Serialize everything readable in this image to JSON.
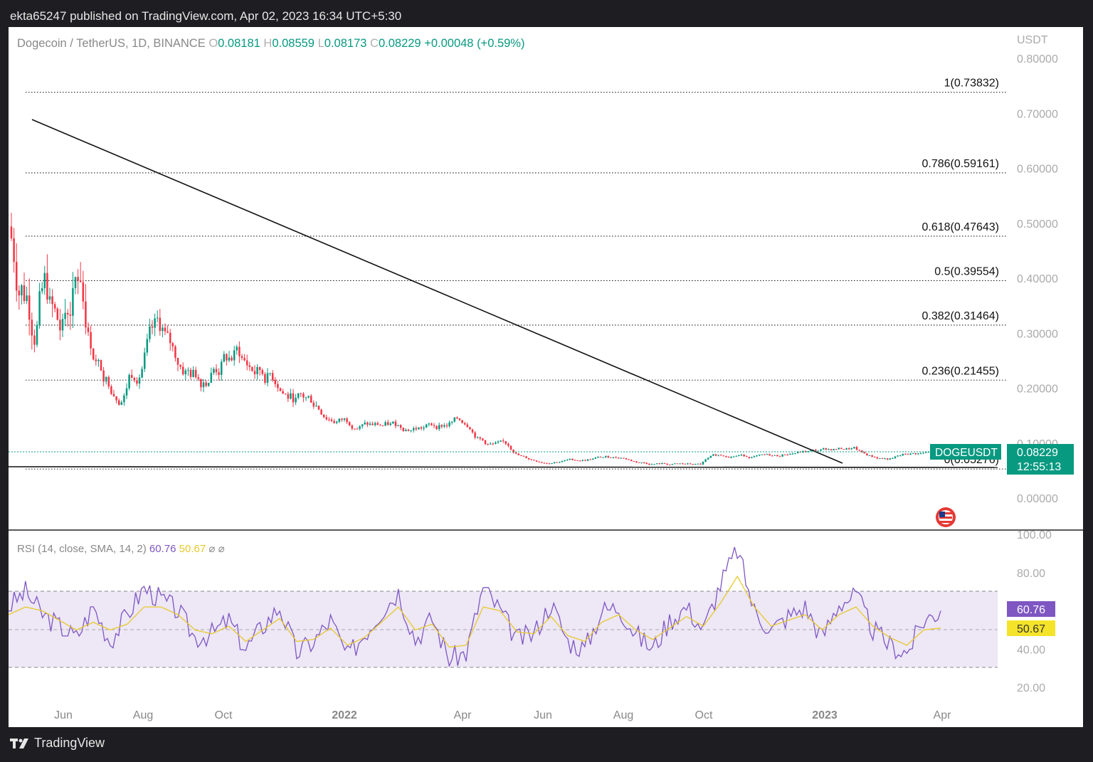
{
  "header": {
    "published_by": "ekta65247 published on TradingView.com, Apr 02, 2023 16:34 UTC+5:30"
  },
  "legend": {
    "symbol": "Dogecoin / TetherUS, 1D, BINANCE",
    "o_label": "O",
    "o_value": "0.08181",
    "h_label": "H",
    "h_value": "0.08559",
    "l_label": "L",
    "l_value": "0.08173",
    "c_label": "C",
    "c_value": "0.08229",
    "change": "+0.00048 (+0.59%)"
  },
  "rsi_legend": {
    "label": "RSI (14, close, SMA, 14, 2)",
    "rsi_value": "60.76",
    "sma_value": "50.67",
    "extra1": "⌀",
    "extra2": "⌀"
  },
  "price_axis": {
    "unit": "USDT",
    "ticks": [
      "0.80000",
      "0.70000",
      "0.60000",
      "0.50000",
      "0.40000",
      "0.30000",
      "0.20000",
      "0.10000",
      "0.00000"
    ],
    "symbol_badge": "DOGEUSDT",
    "last_price": "0.08229",
    "countdown": "12:55:13"
  },
  "rsi_axis": {
    "ticks": [
      "100.00",
      "80.00",
      "40.00",
      "20.00"
    ],
    "rsi_badge": "60.76",
    "sma_badge": "50.67"
  },
  "time_axis": [
    "Jun",
    "Aug",
    "Oct",
    "2022",
    "Apr",
    "Jun",
    "Aug",
    "Oct",
    "2023",
    "Apr"
  ],
  "fib_labels": [
    "1(0.73832)",
    "0.786(0.59161)",
    "0.618(0.47643)",
    "0.5(0.39554)",
    "0.382(0.31464)",
    "0.236(0.21455)",
    "0(0.05276)"
  ],
  "colors": {
    "up": "#089981",
    "down": "#f23645",
    "rsi": "#7e57c2",
    "sma": "#e8c92a",
    "band": "#ede7f6"
  },
  "footer": {
    "brand": "TradingView"
  },
  "chart_data": [
    {
      "type": "candlestick",
      "title": "Dogecoin / TetherUS, 1D, BINANCE",
      "ylabel": "USDT",
      "ylim": [
        0,
        0.8
      ],
      "x": [
        "2021-05",
        "2021-06",
        "2021-07",
        "2021-08",
        "2021-09",
        "2021-10",
        "2021-11",
        "2021-12",
        "2022-01",
        "2022-02",
        "2022-03",
        "2022-04",
        "2022-05",
        "2022-06",
        "2022-07",
        "2022-08",
        "2022-09",
        "2022-10",
        "2022-11",
        "2022-12",
        "2023-01",
        "2023-02",
        "2023-03",
        "2023-04"
      ],
      "close_approx": [
        0.38,
        0.25,
        0.2,
        0.3,
        0.22,
        0.26,
        0.22,
        0.17,
        0.14,
        0.13,
        0.13,
        0.14,
        0.09,
        0.065,
        0.07,
        0.075,
        0.062,
        0.06,
        0.08,
        0.075,
        0.085,
        0.09,
        0.07,
        0.082
      ],
      "trendline": {
        "start": [
          "2021-05-08",
          0.69
        ],
        "end": [
          "2022-12-28",
          0.06
        ]
      },
      "support_line": 0.05276,
      "fibonacci": [
        {
          "level": "1",
          "price": 0.73832
        },
        {
          "level": "0.786",
          "price": 0.59161
        },
        {
          "level": "0.618",
          "price": 0.47643
        },
        {
          "level": "0.5",
          "price": 0.39554
        },
        {
          "level": "0.382",
          "price": 0.31464
        },
        {
          "level": "0.236",
          "price": 0.21455
        },
        {
          "level": "0",
          "price": 0.05276
        }
      ]
    },
    {
      "type": "line",
      "title": "RSI (14, close, SMA, 14, 2)",
      "ylim": [
        15,
        100
      ],
      "bands": [
        30,
        50,
        70
      ],
      "series": [
        {
          "name": "RSI",
          "values": [
            62,
            70,
            58,
            52,
            46,
            62,
            44,
            58,
            72,
            66,
            60,
            46,
            48,
            55,
            40,
            52,
            62,
            38,
            44,
            55,
            36,
            48,
            60,
            70,
            45,
            56,
            35,
            38,
            72,
            60,
            45,
            48,
            64,
            44,
            40,
            60,
            62,
            48,
            40,
            55,
            62,
            50,
            74,
            92,
            60,
            50,
            57,
            62,
            46,
            64,
            68,
            50,
            42,
            38,
            55,
            60
          ]
        },
        {
          "name": "SMA",
          "values": [
            58,
            62,
            60,
            55,
            50,
            54,
            50,
            53,
            62,
            62,
            58,
            50,
            48,
            52,
            44,
            50,
            56,
            44,
            45,
            51,
            42,
            46,
            54,
            62,
            50,
            53,
            41,
            42,
            62,
            60,
            49,
            48,
            57,
            47,
            44,
            54,
            58,
            50,
            45,
            51,
            57,
            52,
            64,
            78,
            62,
            52,
            55,
            58,
            50,
            58,
            62,
            52,
            46,
            42,
            50,
            51
          ]
        }
      ],
      "last": {
        "RSI": 60.76,
        "SMA": 50.67
      }
    }
  ]
}
